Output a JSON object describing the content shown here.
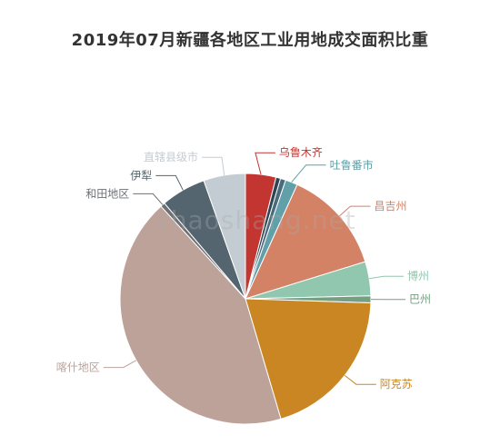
{
  "title": "2019年07月新疆各地区工业用地成交面积比重",
  "watermark": "zhaoshang.net",
  "chart_data": {
    "type": "pie",
    "title": "2019年07月新疆各地区工业用地成交面积比重",
    "slices": [
      {
        "label": "乌鲁木齐",
        "value": 4.0,
        "color": "#c23531"
      },
      {
        "label": "",
        "value": 0.6,
        "color": "#2f4554"
      },
      {
        "label": "",
        "value": 0.7,
        "color": "#4a6b7c"
      },
      {
        "label": "吐鲁番市",
        "value": 1.6,
        "color": "#61a0a8"
      },
      {
        "label": "昌吉州",
        "value": 13.7,
        "color": "#d48265"
      },
      {
        "label": "博州",
        "value": 4.5,
        "color": "#91c7ae"
      },
      {
        "label": "巴州",
        "value": 0.9,
        "color": "#749f83"
      },
      {
        "label": "阿克苏",
        "value": 20.3,
        "color": "#ca8622"
      },
      {
        "label": "喀什地区",
        "value": 43.6,
        "color": "#bda29a"
      },
      {
        "label": "和田地区",
        "value": 0.6,
        "color": "#6e7074"
      },
      {
        "label": "伊犁",
        "value": 5.9,
        "color": "#546570"
      },
      {
        "label": "直辖县级市",
        "value": 5.5,
        "color": "#c4ccd3"
      }
    ]
  }
}
